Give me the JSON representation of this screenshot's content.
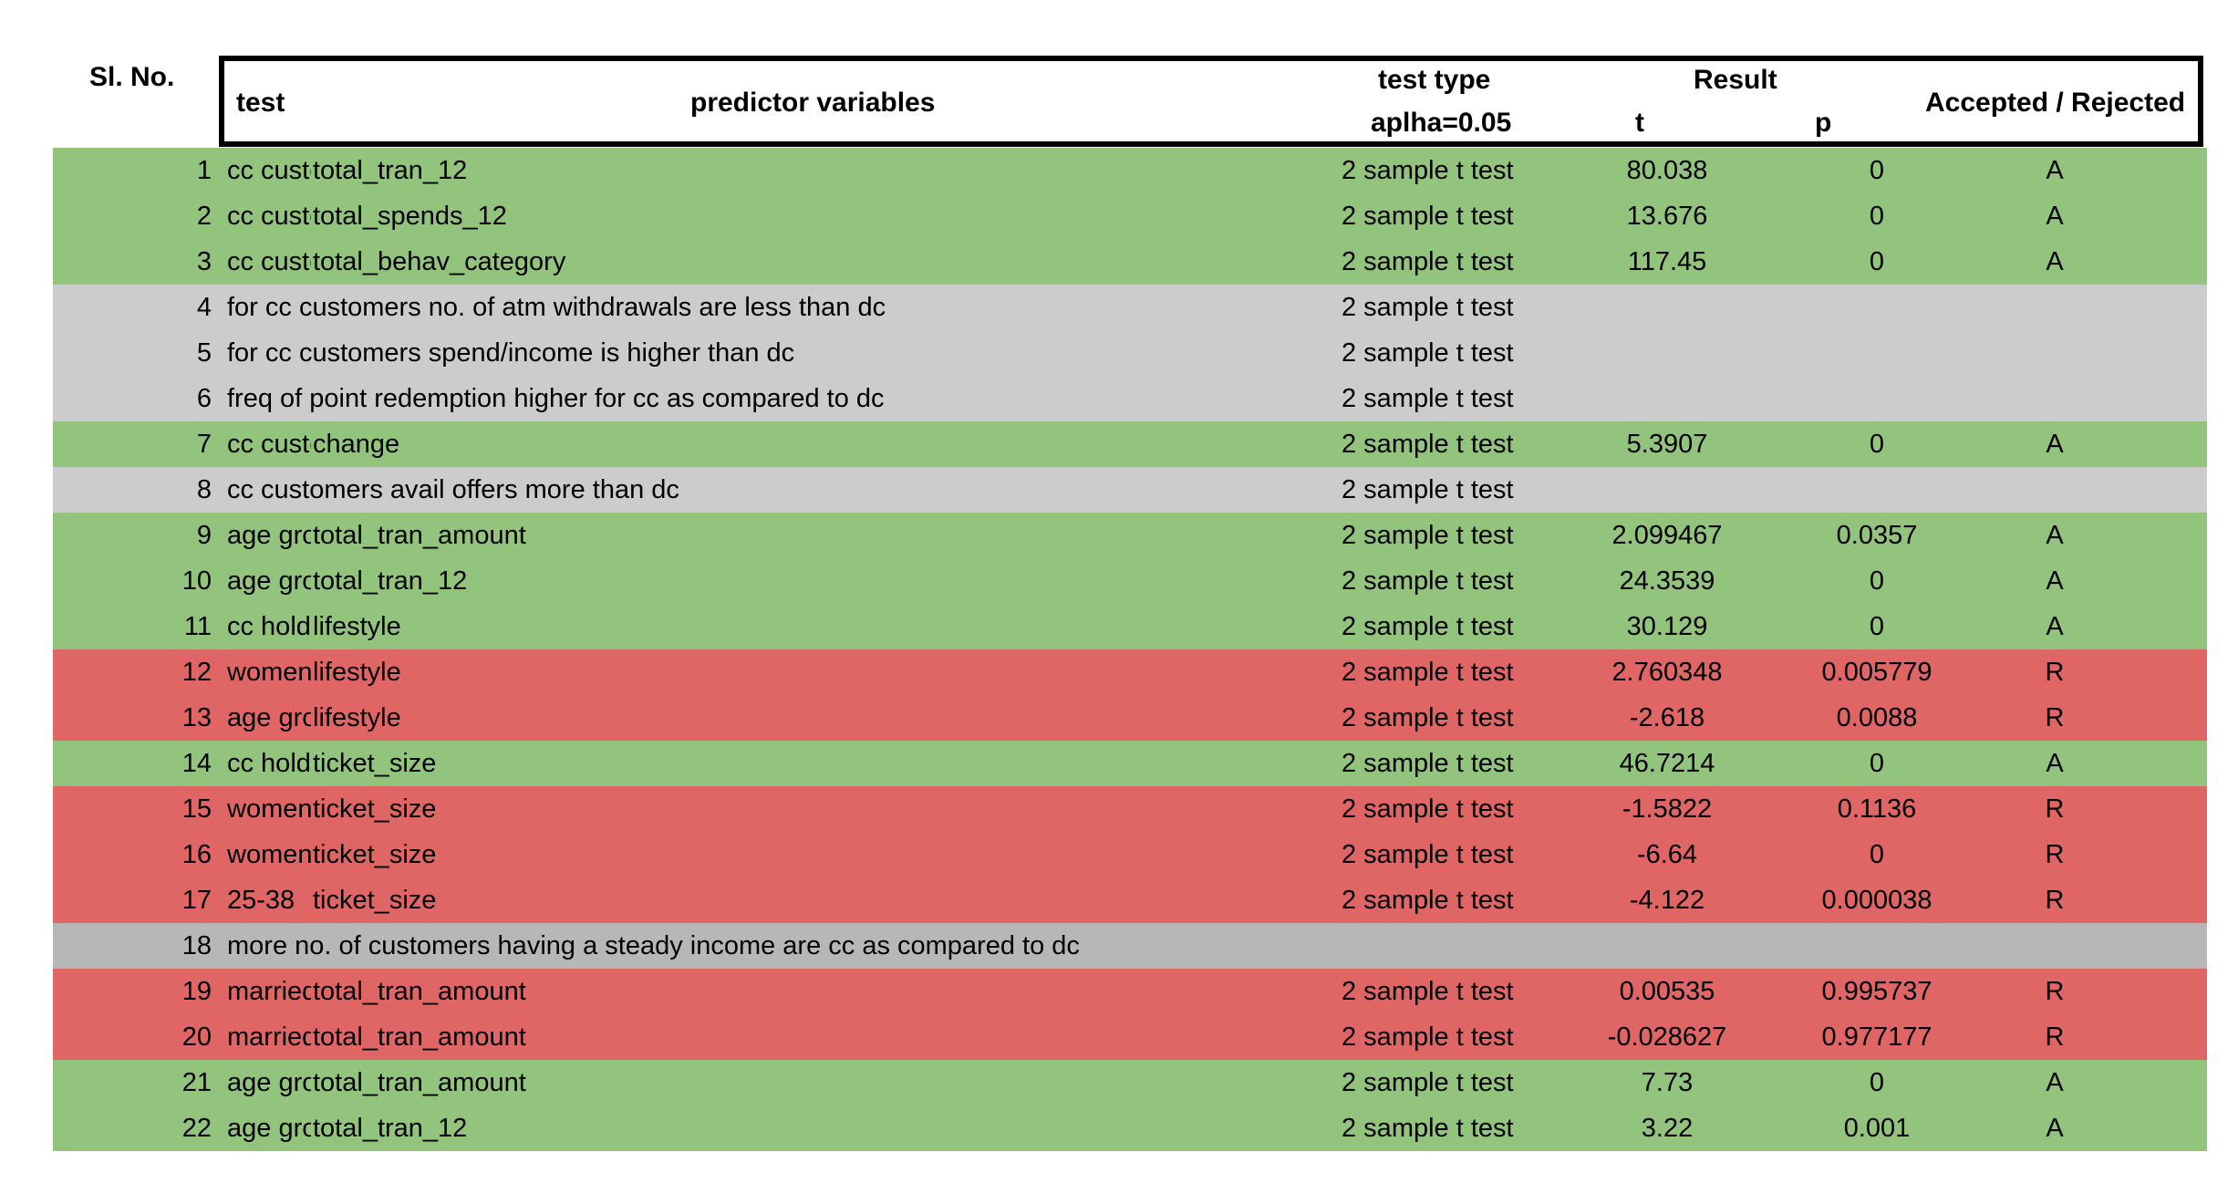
{
  "header": {
    "sl_no": "Sl. No.",
    "test": "test",
    "predictor_variables": "predictor variables",
    "test_type": "test type",
    "alpha": "aplha=0.05",
    "result": "Result",
    "t": "t",
    "p": "p",
    "accepted_rejected": "Accepted / Rejected"
  },
  "colors": {
    "green": "#93c47d",
    "grey": "#cccccc",
    "red": "#e06666",
    "darkgrey": "#b7b7b7"
  },
  "rows": [
    {
      "sl": "1",
      "test": "cc customers make more transactions than dc",
      "predictor": "total_tran_12",
      "type": "2 sample t test",
      "t": "80.038",
      "p": "0",
      "result": "A",
      "color": "green"
    },
    {
      "sl": "2",
      "test": "cc customers spend more than dc",
      "predictor": "total_spends_12",
      "type": "2 sample t test",
      "t": "13.676",
      "p": "0",
      "result": "A",
      "color": "green"
    },
    {
      "sl": "3",
      "test": "cc customers behaviour categories",
      "predictor": "total_behav_category",
      "type": "2 sample t test",
      "t": "117.45",
      "p": "0",
      "result": "A",
      "color": "green"
    },
    {
      "sl": "4",
      "test": "for cc customers no. of atm withdrawals are  less than dc",
      "predictor": "",
      "type": "2 sample t test",
      "t": "",
      "p": "",
      "result": "",
      "color": "grey"
    },
    {
      "sl": "5",
      "test": "for cc customers spend/income is  higher than dc",
      "predictor": "",
      "type": "2 sample t test",
      "t": "",
      "p": "",
      "result": "",
      "color": "grey"
    },
    {
      "sl": "6",
      "test": "freq of point redemption higher for cc as compared to dc",
      "predictor": "",
      "type": "2 sample t test",
      "t": "",
      "p": "",
      "result": "",
      "color": "grey"
    },
    {
      "sl": "7",
      "test": "cc customers change",
      "predictor": "change",
      "type": "2 sample t test",
      "t": "5.3907",
      "p": "0",
      "result": "A",
      "color": "green"
    },
    {
      "sl": "8",
      "test": "cc customers avail offers more than dc",
      "predictor": "",
      "type": "2 sample t test",
      "t": "",
      "p": "",
      "result": "",
      "color": "grey"
    },
    {
      "sl": "9",
      "test": "age group",
      "predictor": "total_tran_amount",
      "type": "2 sample t test",
      "t": "2.099467",
      "p": "0.0357",
      "result": "A",
      "color": "green"
    },
    {
      "sl": "10",
      "test": "age group",
      "predictor": "total_tran_12",
      "type": "2 sample t test",
      "t": "24.3539",
      "p": "0",
      "result": "A",
      "color": "green"
    },
    {
      "sl": "11",
      "test": "cc holders",
      "predictor": "lifestyle",
      "type": "2 sample t test",
      "t": "30.129",
      "p": "0",
      "result": "A",
      "color": "green"
    },
    {
      "sl": "12",
      "test": "women",
      "predictor": "lifestyle",
      "type": "2 sample t test",
      "t": "2.760348",
      "p": "0.005779",
      "result": "R",
      "color": "red"
    },
    {
      "sl": "13",
      "test": "age group",
      "predictor": "lifestyle",
      "type": "2 sample t test",
      "t": "-2.618",
      "p": "0.0088",
      "result": "R",
      "color": "red"
    },
    {
      "sl": "14",
      "test": "cc holders",
      "predictor": "ticket_size",
      "type": "2 sample t test",
      "t": "46.7214",
      "p": "0",
      "result": "A",
      "color": "green"
    },
    {
      "sl": "15",
      "test": "women",
      "predictor": "ticket_size",
      "type": "2 sample t test",
      "t": "-1.5822",
      "p": "0.1136",
      "result": "R",
      "color": "red"
    },
    {
      "sl": "16",
      "test": "women",
      "predictor": "ticket_size",
      "type": "2 sample t test",
      "t": "-6.64",
      "p": "0",
      "result": "R",
      "color": "red"
    },
    {
      "sl": "17",
      "test": "25-38",
      "predictor": "ticket_size",
      "type": "2 sample t test",
      "t": "-4.122",
      "p": "0.000038",
      "result": "R",
      "color": "red"
    },
    {
      "sl": "18",
      "test": "more no. of customers having a steady income are cc as compared to dc",
      "predictor": "",
      "type": "",
      "t": "",
      "p": "",
      "result": "",
      "color": "darkgrey"
    },
    {
      "sl": "19",
      "test": "married",
      "predictor": "total_tran_amount",
      "type": "2 sample t test",
      "t": "0.00535",
      "p": "0.995737",
      "result": "R",
      "color": "red"
    },
    {
      "sl": "20",
      "test": "married",
      "predictor": "total_tran_amount",
      "type": "2 sample t test",
      "t": "-0.028627",
      "p": "0.977177",
      "result": "R",
      "color": "red"
    },
    {
      "sl": "21",
      "test": "age group",
      "predictor": "total_tran_amount",
      "type": "2 sample t test",
      "t": "7.73",
      "p": "0",
      "result": "A",
      "color": "green"
    },
    {
      "sl": "22",
      "test": "age group",
      "predictor": "total_tran_12",
      "type": "2 sample t test",
      "t": "3.22",
      "p": "0.001",
      "result": "A",
      "color": "green"
    }
  ]
}
